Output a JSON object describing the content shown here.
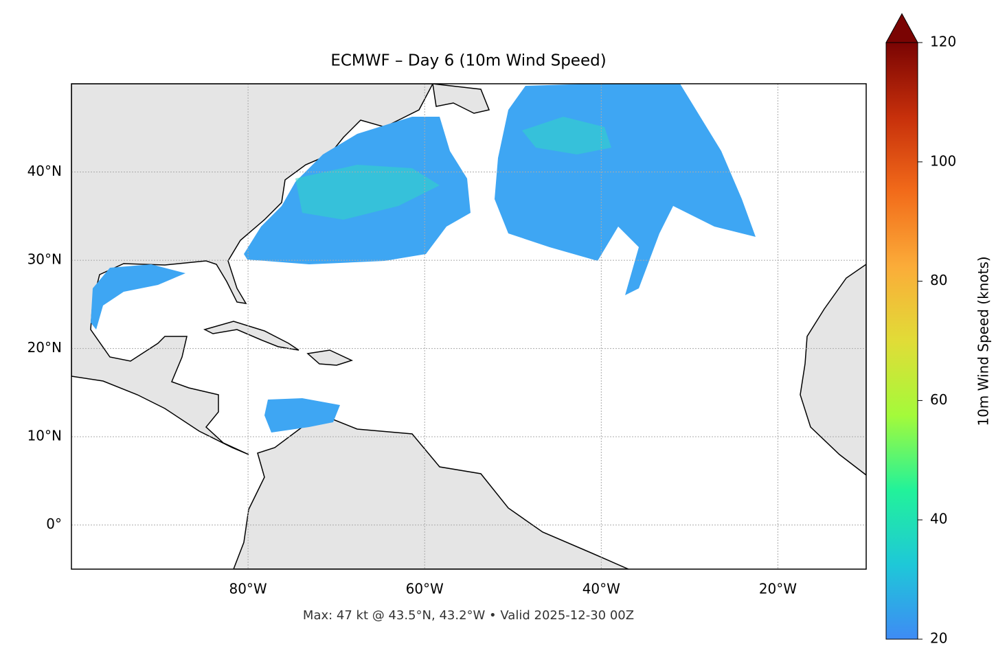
{
  "chart_data": {
    "type": "map",
    "title": "ECMWF – Day 6 (10m Wind Speed)",
    "annotation": "Max: 47 kt @ 43.5°N, 43.2°W • Valid 2025-12-30 00Z",
    "xlim": [
      -100,
      -10
    ],
    "ylim": [
      -5,
      50
    ],
    "xticks": [
      {
        "value": -80,
        "label": "80°W"
      },
      {
        "value": -60,
        "label": "60°W"
      },
      {
        "value": -40,
        "label": "40°W"
      },
      {
        "value": -20,
        "label": "20°W"
      }
    ],
    "yticks": [
      {
        "value": 0,
        "label": "0°"
      },
      {
        "value": 10,
        "label": "10°N"
      },
      {
        "value": 20,
        "label": "20°N"
      },
      {
        "value": 30,
        "label": "30°N"
      },
      {
        "value": 40,
        "label": "40°N"
      }
    ],
    "grid": true,
    "colorbar": {
      "label": "10m Wind Speed (knots)",
      "lim": [
        20,
        120
      ],
      "ticks": [
        20,
        40,
        60,
        80,
        100,
        120
      ],
      "colors": [
        "#3e8bf5",
        "#1ec8d8",
        "#22f29a",
        "#a4fa3a",
        "#e1dc37",
        "#fbac39",
        "#f26b1a",
        "#c7300b",
        "#7a0403"
      ]
    }
  }
}
